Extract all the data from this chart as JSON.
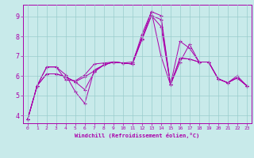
{
  "xlabel": "Windchill (Refroidissement éolien,°C)",
  "background_color": "#c8eaea",
  "line_color": "#aa00aa",
  "grid_color": "#99cccc",
  "xlim": [
    -0.5,
    23.5
  ],
  "ylim": [
    3.6,
    9.6
  ],
  "xticks": [
    0,
    1,
    2,
    3,
    4,
    5,
    6,
    7,
    8,
    9,
    10,
    11,
    12,
    13,
    14,
    15,
    16,
    17,
    18,
    19,
    20,
    21,
    22,
    23
  ],
  "yticks": [
    4,
    5,
    6,
    7,
    8,
    9
  ],
  "series": [
    [
      3.8,
      5.5,
      6.45,
      6.45,
      5.8,
      5.75,
      6.05,
      6.6,
      6.65,
      6.7,
      6.65,
      6.7,
      7.9,
      9.25,
      9.05,
      5.55,
      6.9,
      6.85,
      6.7,
      6.7,
      5.85,
      5.65,
      6.0,
      5.5
    ],
    [
      3.8,
      5.5,
      6.45,
      6.45,
      6.05,
      5.2,
      4.6,
      6.3,
      6.55,
      6.7,
      6.65,
      6.6,
      7.85,
      9.05,
      8.85,
      5.55,
      6.7,
      7.6,
      6.7,
      6.7,
      5.85,
      5.65,
      5.9,
      5.5
    ],
    [
      3.8,
      5.5,
      6.1,
      6.1,
      5.95,
      5.7,
      5.95,
      6.25,
      6.55,
      6.7,
      6.65,
      6.6,
      8.1,
      9.25,
      7.0,
      5.55,
      7.75,
      7.4,
      6.7,
      6.7,
      5.85,
      5.65,
      5.9,
      5.5
    ],
    [
      3.8,
      5.5,
      6.1,
      6.1,
      5.95,
      5.7,
      5.3,
      6.2,
      6.55,
      6.7,
      6.65,
      6.6,
      7.85,
      9.05,
      8.5,
      5.55,
      6.9,
      6.85,
      6.7,
      6.7,
      5.85,
      5.65,
      5.9,
      5.5
    ]
  ]
}
